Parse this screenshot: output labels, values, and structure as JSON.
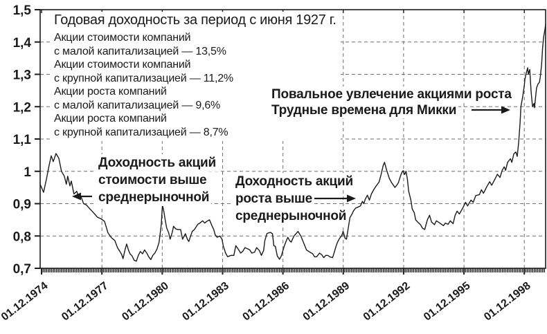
{
  "chart_data": {
    "type": "line",
    "title": "Годовая доходность за период с июня 1927 г.",
    "legend_position": "top-left",
    "legend": [
      {
        "line1": "Акции стоимости компаний",
        "line2": "с малой капитализацией — 13,5%"
      },
      {
        "line1": "Акции стоимости компаний",
        "line2": "с крупной капитализацией — 11,2%"
      },
      {
        "line1": "Акции роста компаний",
        "line2": "с малой капитализацией — 9,6%"
      },
      {
        "line1": "Акции роста компаний",
        "line2": "с крупной капитализацией — 8,7%"
      }
    ],
    "grid": "dashed",
    "xlim": [
      1974.85,
      1999.98
    ],
    "ylim": [
      0.7,
      1.5
    ],
    "x_ticks": [
      {
        "year": 1974.92,
        "label": "01.12.1974"
      },
      {
        "year": 1977.92,
        "label": "01.12.1977"
      },
      {
        "year": 1980.92,
        "label": "01.12.1980"
      },
      {
        "year": 1983.92,
        "label": "01.12.1983"
      },
      {
        "year": 1986.92,
        "label": "01.12.1986"
      },
      {
        "year": 1989.92,
        "label": "01.12.1989"
      },
      {
        "year": 1992.92,
        "label": "01.12.1992"
      },
      {
        "year": 1995.92,
        "label": "01.12.1995"
      },
      {
        "year": 1998.92,
        "label": "01.12.1998"
      }
    ],
    "y_ticks": [
      {
        "value": 0.7,
        "label": "0,7"
      },
      {
        "value": 0.8,
        "label": "0,8"
      },
      {
        "value": 0.9,
        "label": "0,9"
      },
      {
        "value": 1.0,
        "label": "1"
      },
      {
        "value": 1.1,
        "label": "1,1"
      },
      {
        "value": 1.2,
        "label": "1,2"
      },
      {
        "value": 1.3,
        "label": "1,3"
      },
      {
        "value": 1.4,
        "label": "1,4"
      },
      {
        "value": 1.5,
        "label": "1,5"
      }
    ],
    "x": [
      1974.85,
      1975.02,
      1975.16,
      1975.3,
      1975.4,
      1975.5,
      1975.64,
      1975.78,
      1975.91,
      1976.05,
      1976.15,
      1976.22,
      1976.33,
      1976.4,
      1976.53,
      1976.67,
      1976.77,
      1976.88,
      1977.01,
      1977.15,
      1977.29,
      1977.43,
      1977.56,
      1977.7,
      1977.88,
      1978.05,
      1978.22,
      1978.39,
      1978.56,
      1978.7,
      1978.8,
      1978.91,
      1978.97,
      1979.08,
      1979.15,
      1979.25,
      1979.32,
      1979.42,
      1979.52,
      1979.63,
      1979.73,
      1979.83,
      1979.94,
      1980.04,
      1980.14,
      1980.25,
      1980.35,
      1980.45,
      1980.56,
      1980.66,
      1980.76,
      1980.87,
      1980.93,
      1981.0,
      1981.07,
      1981.14,
      1981.24,
      1981.31,
      1981.42,
      1981.48,
      1981.59,
      1981.69,
      1981.83,
      1981.93,
      1982.07,
      1982.17,
      1982.24,
      1982.41,
      1982.52,
      1982.69,
      1982.79,
      1982.93,
      1983.03,
      1983.13,
      1983.27,
      1983.38,
      1983.48,
      1983.55,
      1983.65,
      1983.79,
      1983.89,
      1983.96,
      1984.07,
      1984.17,
      1984.34,
      1984.48,
      1984.58,
      1984.69,
      1984.82,
      1984.93,
      1985.03,
      1985.17,
      1985.27,
      1985.37,
      1985.51,
      1985.61,
      1985.75,
      1985.85,
      1985.96,
      1986.02,
      1986.13,
      1986.3,
      1986.4,
      1986.47,
      1986.54,
      1986.64,
      1986.75,
      1986.85,
      1986.99,
      1987.16,
      1987.26,
      1987.33,
      1987.47,
      1987.61,
      1987.67,
      1987.81,
      1987.95,
      1988.09,
      1988.26,
      1988.4,
      1988.5,
      1988.6,
      1988.74,
      1988.85,
      1988.95,
      1989.05,
      1989.15,
      1989.26,
      1989.39,
      1989.46,
      1989.57,
      1989.63,
      1989.74,
      1989.84,
      1989.91,
      1990.01,
      1990.08,
      1990.19,
      1990.25,
      1990.36,
      1990.42,
      1990.53,
      1990.67,
      1990.77,
      1990.87,
      1990.94,
      1991.01,
      1991.12,
      1991.22,
      1991.32,
      1991.46,
      1991.56,
      1991.7,
      1991.8,
      1991.9,
      1991.97,
      1992.08,
      1992.21,
      1992.32,
      1992.38,
      1992.49,
      1992.59,
      1992.66,
      1992.76,
      1992.83,
      1992.9,
      1992.97,
      1993.04,
      1993.11,
      1993.17,
      1993.28,
      1993.35,
      1993.45,
      1993.52,
      1993.62,
      1993.76,
      1993.86,
      1993.97,
      1994.1,
      1994.21,
      1994.31,
      1994.45,
      1994.55,
      1994.72,
      1994.9,
      1995.0,
      1995.13,
      1995.24,
      1995.38,
      1995.48,
      1995.58,
      1995.69,
      1995.86,
      1996.0,
      1996.1,
      1996.27,
      1996.38,
      1996.51,
      1996.69,
      1996.79,
      1996.89,
      1997.06,
      1997.2,
      1997.3,
      1997.48,
      1997.58,
      1997.71,
      1997.82,
      1997.92,
      1997.99,
      1998.09,
      1998.23,
      1998.3,
      1998.4,
      1998.5,
      1998.57,
      1998.64,
      1998.71,
      1998.75,
      1998.81,
      1998.85,
      1998.92,
      1998.95,
      1999.02,
      1999.09,
      1999.12,
      1999.19,
      1999.26,
      1999.33,
      1999.4,
      1999.43,
      1999.53,
      1999.6,
      1999.67,
      1999.71,
      1999.78,
      1999.83,
      1999.88,
      1999.95,
      1999.98
    ],
    "y": [
      0.96,
      0.935,
      0.975,
      1.02,
      1.048,
      1.03,
      1.055,
      1.04,
      1.0,
      0.985,
      0.96,
      0.985,
      0.955,
      0.97,
      0.93,
      0.938,
      0.917,
      0.922,
      0.9,
      0.896,
      0.886,
      0.877,
      0.868,
      0.858,
      0.853,
      0.845,
      0.81,
      0.795,
      0.786,
      0.763,
      0.754,
      0.742,
      0.73,
      0.76,
      0.775,
      0.755,
      0.745,
      0.738,
      0.725,
      0.722,
      0.74,
      0.752,
      0.745,
      0.757,
      0.748,
      0.735,
      0.727,
      0.74,
      0.748,
      0.76,
      0.78,
      0.835,
      0.896,
      0.875,
      0.848,
      0.825,
      0.81,
      0.79,
      0.812,
      0.83,
      0.822,
      0.82,
      0.82,
      0.79,
      0.807,
      0.79,
      0.783,
      0.814,
      0.82,
      0.836,
      0.84,
      0.847,
      0.84,
      0.845,
      0.85,
      0.833,
      0.82,
      0.804,
      0.796,
      0.8,
      0.79,
      0.768,
      0.747,
      0.736,
      0.74,
      0.74,
      0.77,
      0.76,
      0.747,
      0.753,
      0.764,
      0.76,
      0.757,
      0.747,
      0.75,
      0.764,
      0.755,
      0.74,
      0.755,
      0.786,
      0.808,
      0.811,
      0.807,
      0.77,
      0.768,
      0.738,
      0.728,
      0.74,
      0.77,
      0.796,
      0.785,
      0.781,
      0.8,
      0.81,
      0.814,
      0.8,
      0.779,
      0.757,
      0.75,
      0.745,
      0.735,
      0.736,
      0.747,
      0.742,
      0.733,
      0.74,
      0.74,
      0.735,
      0.733,
      0.747,
      0.77,
      0.78,
      0.793,
      0.8,
      0.814,
      0.793,
      0.79,
      0.833,
      0.857,
      0.868,
      0.877,
      0.886,
      0.89,
      0.893,
      0.907,
      0.9,
      0.913,
      0.926,
      0.911,
      0.93,
      0.946,
      0.955,
      0.967,
      0.99,
      1.017,
      1.028,
      1.003,
      0.978,
      0.965,
      0.96,
      0.95,
      0.958,
      0.965,
      0.985,
      0.996,
      1.002,
      0.99,
      1.0,
      0.975,
      0.939,
      0.911,
      0.883,
      0.872,
      0.85,
      0.843,
      0.835,
      0.824,
      0.82,
      0.85,
      0.864,
      0.843,
      0.835,
      0.847,
      0.84,
      0.832,
      0.84,
      0.836,
      0.847,
      0.838,
      0.864,
      0.877,
      0.868,
      0.886,
      0.904,
      0.893,
      0.911,
      0.904,
      0.925,
      0.928,
      0.943,
      0.932,
      0.953,
      0.968,
      0.957,
      0.978,
      0.991,
      0.981,
      1.003,
      1.014,
      1.003,
      1.028,
      1.039,
      1.028,
      1.054,
      1.06,
      1.046,
      1.09,
      1.15,
      1.2,
      1.22,
      1.235,
      1.265,
      1.285,
      1.305,
      1.32,
      1.3,
      1.315,
      1.245,
      1.2,
      1.21,
      1.197,
      1.258,
      1.27,
      1.275,
      1.29,
      1.33,
      1.38,
      1.415,
      1.44,
      1.455
    ]
  },
  "annotations": [
    {
      "lines": [
        "Повальное увлечение акциями роста",
        "Трудные времена для Микки"
      ],
      "arrow": "right"
    },
    {
      "lines": [
        "Доходность акций",
        "стоимости выше",
        "среднерыночной"
      ],
      "arrow": "left"
    },
    {
      "lines": [
        "Доходность акций",
        "роста выше",
        "среднерыночной"
      ],
      "arrow": "right"
    }
  ],
  "colors": {
    "line": "#1a1a1a",
    "grid": "#6e6e6e",
    "text": "#1a1a1a",
    "background": "#ffffff"
  }
}
